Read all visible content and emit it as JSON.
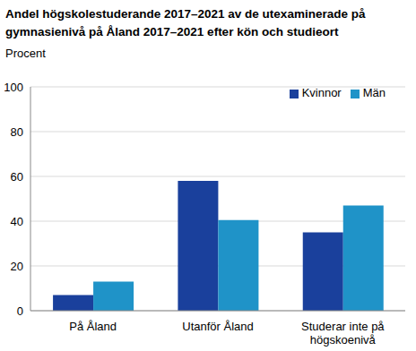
{
  "chart_data": {
    "type": "bar",
    "title": "Andel högskolestuderande 2017–2021 av de utexaminerade på gymnasienivå på Åland 2017–2021 efter kön och studieort",
    "y_label": "Procent",
    "categories": [
      "På Åland",
      "Utanför Åland",
      "Studerar inte på högskoenivå"
    ],
    "series": [
      {
        "name": "Kvinnor",
        "color": "#1a409c",
        "values": [
          7,
          58,
          35
        ]
      },
      {
        "name": "Män",
        "color": "#1f93c8",
        "values": [
          13,
          40.5,
          47
        ]
      }
    ],
    "ylim": [
      0,
      100
    ],
    "yticks": [
      0,
      20,
      40,
      60,
      80,
      100
    ],
    "grid": true,
    "legend": "top-right"
  }
}
